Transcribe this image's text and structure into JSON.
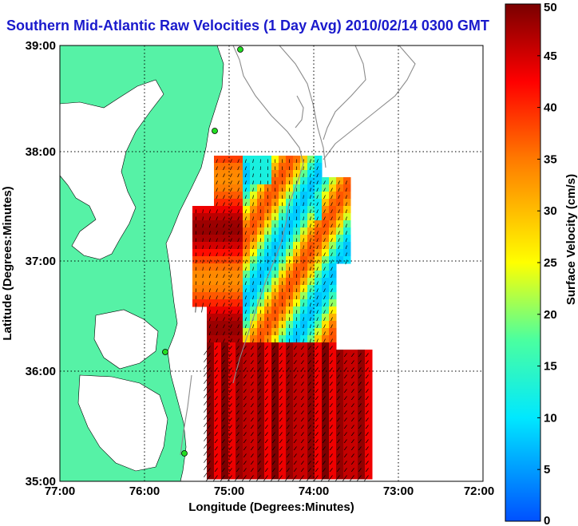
{
  "title": "Southern Mid-Atlantic Raw Velocities (1 Day Avg) 2010/02/14 0300 GMT",
  "axes": {
    "xlabel": "Longitude (Degrees:Minutes)",
    "ylabel": "Latitude (Degrees:Minutes)",
    "x_ticks": [
      "77:00",
      "76:00",
      "75:00",
      "74:00",
      "73:00",
      "72:00"
    ],
    "y_ticks": [
      "39:00",
      "38:00",
      "37:00",
      "36:00",
      "35:00"
    ]
  },
  "colorbar": {
    "label": "Surface Velocity (cm/s)",
    "min": 0,
    "max": 50,
    "ticks": [
      "0",
      "5",
      "10",
      "15",
      "20",
      "25",
      "30",
      "35",
      "40",
      "45",
      "50"
    ]
  },
  "colors": {
    "land": "#56f2a6",
    "water": "#ffffff",
    "bathymetry": "#8c8c8c",
    "station": "#22dd22",
    "title": "#1a1acc"
  },
  "chart_data": {
    "type": "heatmap",
    "title": "Southern Mid-Atlantic Raw Velocities (1 Day Avg) 2010/02/14 0300 GMT",
    "xlabel": "Longitude (Degrees:Minutes)",
    "ylabel": "Latitude (Degrees:Minutes)",
    "xlim": [
      -77,
      -72
    ],
    "ylim": [
      35,
      39
    ],
    "zlabel": "Surface Velocity (cm/s)",
    "zlim": [
      0,
      50
    ],
    "grid": true
  }
}
